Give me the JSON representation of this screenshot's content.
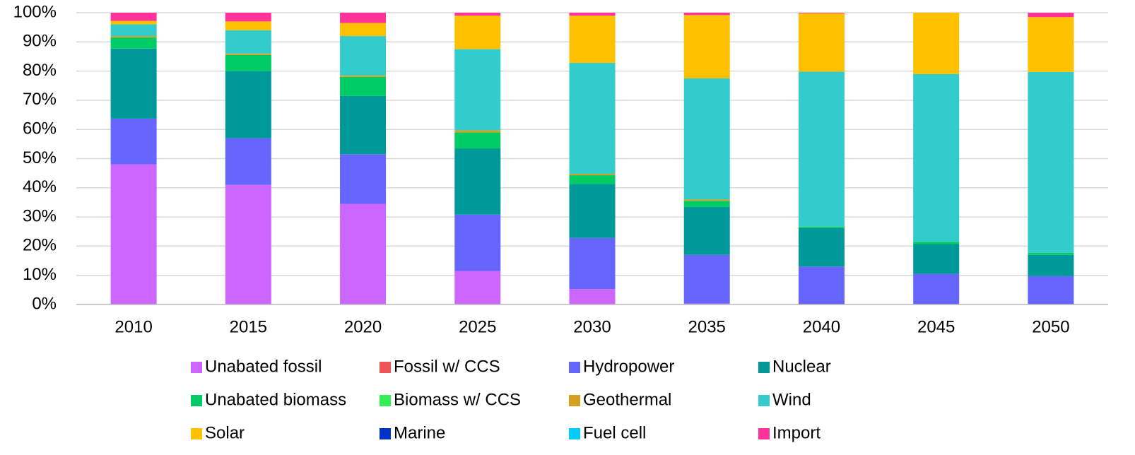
{
  "chart_data": {
    "type": "stacked_bar",
    "categories": [
      "2010",
      "2015",
      "2020",
      "2025",
      "2030",
      "2035",
      "2040",
      "2045",
      "2050"
    ],
    "series": [
      {
        "name": "Unabated fossil",
        "color": "#cc66ff",
        "values": [
          48,
          41,
          34.5,
          11.5,
          5.3,
          0.3,
          0,
          0,
          0
        ]
      },
      {
        "name": "Fossil w/ CCS",
        "color": "#f05454",
        "values": [
          0,
          0,
          0,
          0,
          0,
          0,
          0,
          0,
          0
        ]
      },
      {
        "name": "Hydropower",
        "color": "#6666ff",
        "values": [
          15.7,
          16,
          17,
          19.3,
          17.5,
          16.7,
          13,
          10.5,
          9.7
        ]
      },
      {
        "name": "Nuclear",
        "color": "#009999",
        "values": [
          24,
          23,
          20,
          22.7,
          18.5,
          16.5,
          13.2,
          10.2,
          7.3
        ]
      },
      {
        "name": "Unabated biomass",
        "color": "#00cc66",
        "values": [
          3.8,
          5.5,
          6.5,
          5.5,
          3,
          2,
          0.5,
          0.8,
          0.7
        ]
      },
      {
        "name": "Biomass w/ CCS",
        "color": "#33ee55",
        "values": [
          0,
          0,
          0,
          0,
          0,
          0,
          0,
          0,
          0
        ]
      },
      {
        "name": "Geothermal",
        "color": "#d4a020",
        "values": [
          0.5,
          0.5,
          0.5,
          0.7,
          0.5,
          0.5,
          0,
          0,
          0
        ]
      },
      {
        "name": "Wind",
        "color": "#33cccc",
        "values": [
          4,
          8,
          13.5,
          27.8,
          38,
          41.5,
          53.1,
          57.5,
          62
        ]
      },
      {
        "name": "Solar",
        "color": "#ffc000",
        "values": [
          1.2,
          3,
          4.5,
          11.5,
          16.2,
          21.7,
          20,
          21,
          18.8
        ]
      },
      {
        "name": "Marine",
        "color": "#0033cc",
        "values": [
          0,
          0,
          0,
          0,
          0,
          0,
          0,
          0,
          0
        ]
      },
      {
        "name": "Fuel cell",
        "color": "#00ccff",
        "values": [
          0,
          0,
          0,
          0,
          0,
          0,
          0,
          0,
          0
        ]
      },
      {
        "name": "Import",
        "color": "#ff3399",
        "values": [
          2.8,
          3,
          3.5,
          1,
          1,
          0.8,
          0.2,
          0,
          1.5
        ]
      }
    ],
    "ylim": [
      0,
      100
    ],
    "yticks": [
      {
        "value": 0,
        "label": "0%"
      },
      {
        "value": 10,
        "label": "10%"
      },
      {
        "value": 20,
        "label": "20%"
      },
      {
        "value": 30,
        "label": "30%"
      },
      {
        "value": 40,
        "label": "40%"
      },
      {
        "value": 50,
        "label": "50%"
      },
      {
        "value": 60,
        "label": "60%"
      },
      {
        "value": 70,
        "label": "70%"
      },
      {
        "value": 80,
        "label": "80%"
      },
      {
        "value": 90,
        "label": "90%"
      },
      {
        "value": 100,
        "label": "100%"
      }
    ],
    "grid": true,
    "legend": "bottom"
  }
}
